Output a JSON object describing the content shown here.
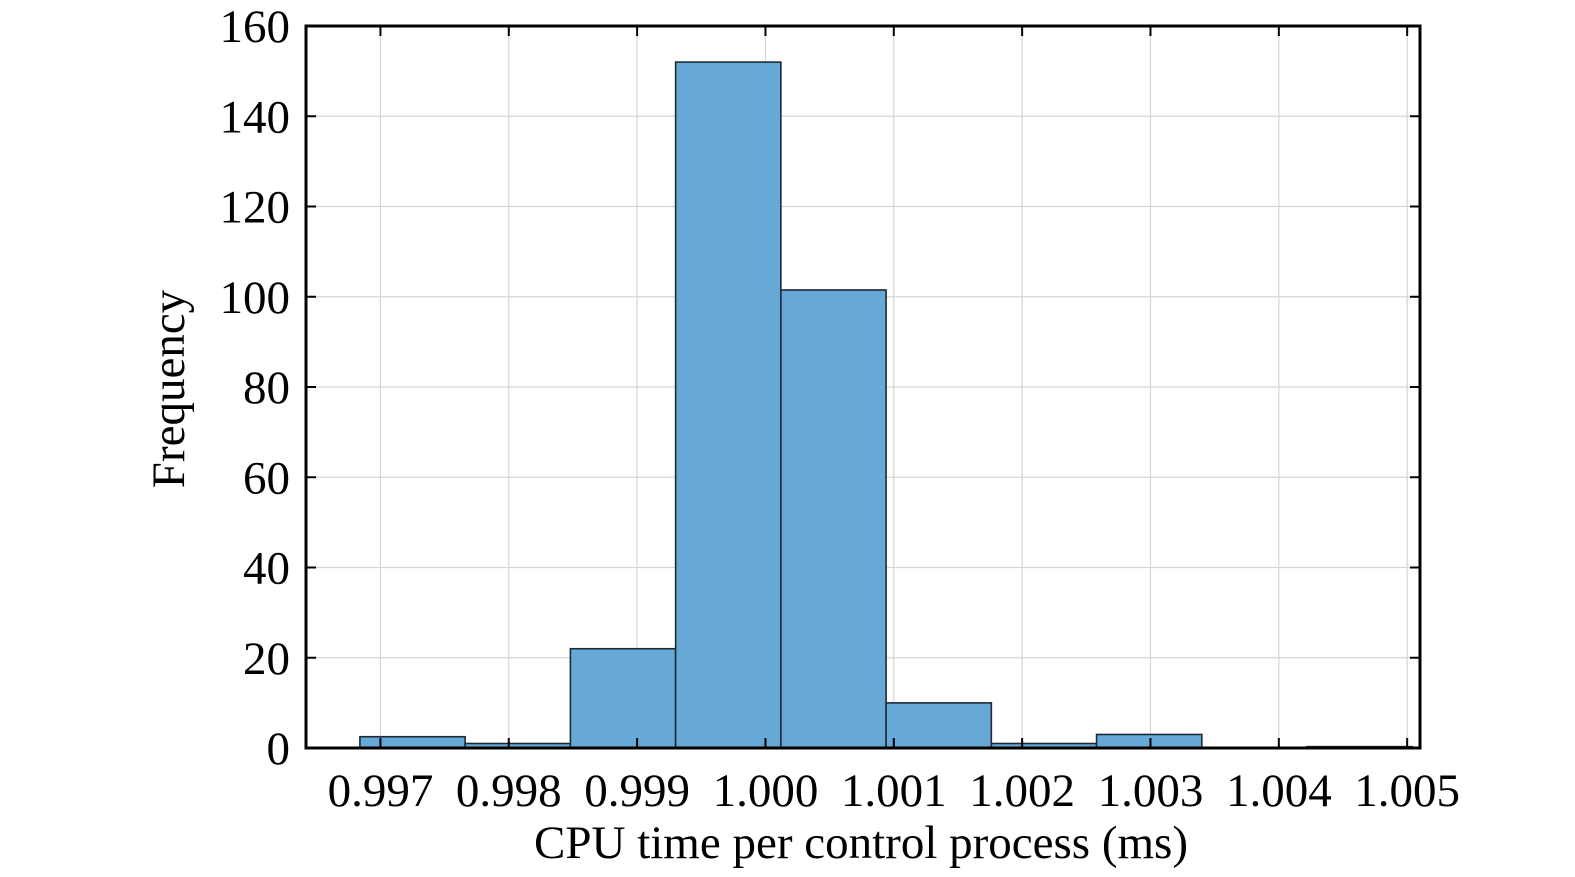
{
  "chart_data": {
    "type": "bar",
    "subtype": "histogram",
    "title": "",
    "xlabel": "CPU time per control process (ms)",
    "ylabel": "Frequency",
    "xlim": [
      0.99642,
      1.0051
    ],
    "ylim": [
      0,
      160
    ],
    "x_ticks": [
      0.997,
      0.998,
      0.999,
      1.0,
      1.001,
      1.002,
      1.003,
      1.004,
      1.005
    ],
    "x_tick_labels": [
      "0.997",
      "0.998",
      "0.999",
      "1.000",
      "1.001",
      "1.002",
      "1.003",
      "1.004",
      "1.005"
    ],
    "y_ticks": [
      0,
      20,
      40,
      60,
      80,
      100,
      120,
      140,
      160
    ],
    "y_tick_labels": [
      "0",
      "20",
      "40",
      "60",
      "80",
      "100",
      "120",
      "140",
      "160"
    ],
    "bins": [
      {
        "x0": 0.99684,
        "x1": 0.99766,
        "count": 2.5
      },
      {
        "x0": 0.99766,
        "x1": 0.99848,
        "count": 1
      },
      {
        "x0": 0.99848,
        "x1": 0.9993,
        "count": 22
      },
      {
        "x0": 0.9993,
        "x1": 1.00012,
        "count": 152
      },
      {
        "x0": 1.00012,
        "x1": 1.00094,
        "count": 101.5
      },
      {
        "x0": 1.00094,
        "x1": 1.00176,
        "count": 10
      },
      {
        "x0": 1.00176,
        "x1": 1.00258,
        "count": 1
      },
      {
        "x0": 1.00258,
        "x1": 1.0034,
        "count": 3
      },
      {
        "x0": 1.0034,
        "x1": 1.00422,
        "count": 0
      },
      {
        "x0": 1.00422,
        "x1": 1.00504,
        "count": 0.3
      }
    ],
    "grid": true,
    "legend": "none",
    "colors": {
      "bar_fill": "#66a8d6",
      "bar_edge": "#1e2a36",
      "grid": "#d6d6d6"
    }
  }
}
